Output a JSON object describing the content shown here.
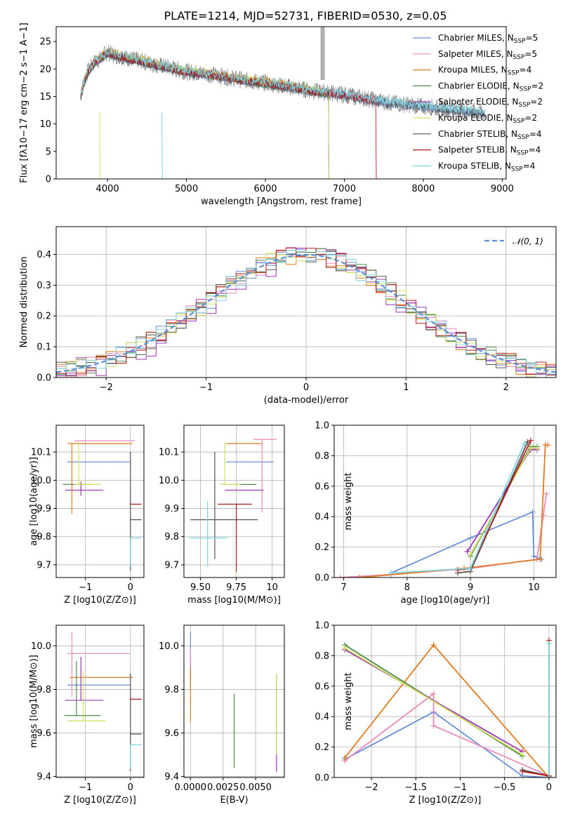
{
  "title": "PLATE=1214, MJD=52731, FIBERID=0530, z=0.05",
  "models": [
    {
      "name": "Chabrier MILES, N",
      "nssp": "5",
      "color": "#6a8fd6"
    },
    {
      "name": "Salpeter MILES, N",
      "nssp": "5",
      "color": "#e88ab8"
    },
    {
      "name": "Kroupa MILES, N",
      "nssp": "4",
      "color": "#e07c1f"
    },
    {
      "name": "Chabrier ELODIE, N",
      "nssp": "2",
      "color": "#4d8a4d"
    },
    {
      "name": "Salpeter ELODIE, N",
      "nssp": "2",
      "color": "#9b35b5"
    },
    {
      "name": "Kroupa ELODIE, N",
      "nssp": "2",
      "color": "#cfe05a"
    },
    {
      "name": "Chabrier STELIB, N",
      "nssp": "4",
      "color": "#555555"
    },
    {
      "name": "Salpeter STELIB, N",
      "nssp": "4",
      "color": "#b11a1a"
    },
    {
      "name": "Kroupa STELIB, N",
      "nssp": "4",
      "color": "#7fd3dd"
    }
  ],
  "legend_sub": "SSP",
  "gauss_label": "𝒩(0, 1)",
  "chart_data": [
    {
      "id": "spectrum",
      "type": "line",
      "title": "PLATE=1214, MJD=52731, FIBERID=0530, z=0.05",
      "xlabel": "wavelength [Angstrom, rest frame]",
      "ylabel": "Flux [fλ10−17 erg cm−2 s−1 A−1]",
      "xlim": [
        3350,
        9050
      ],
      "ylim": [
        0,
        27.7
      ],
      "xticks": [
        4000,
        5000,
        6000,
        7000,
        8000,
        9000
      ],
      "yticks": [
        0,
        5,
        10,
        15,
        20,
        25
      ],
      "x": [
        3650,
        3700,
        3750,
        3800,
        3850,
        3900,
        3950,
        4000,
        4100,
        4200,
        4300,
        4400,
        4500,
        4600,
        4700,
        4800,
        4900,
        5000,
        5200,
        5400,
        5600,
        5800,
        6000,
        6200,
        6400,
        6600,
        6800,
        7000,
        7200,
        7400,
        7600,
        7800,
        8000,
        8200,
        8400,
        8600,
        8800
      ],
      "y": [
        14.5,
        17.5,
        19.5,
        20.5,
        21.5,
        21.8,
        22.5,
        23.0,
        22.5,
        22.2,
        21.8,
        21.5,
        21.2,
        20.8,
        20.5,
        20.2,
        19.8,
        19.5,
        19.2,
        18.8,
        18.3,
        17.8,
        17.5,
        17.0,
        16.5,
        16.0,
        15.7,
        15.3,
        14.8,
        14.3,
        13.8,
        13.5,
        13.2,
        12.9,
        12.6,
        12.3,
        12.0
      ],
      "legend": "top-right"
    },
    {
      "id": "residual",
      "type": "histogram",
      "xlabel": "(data-model)/error",
      "ylabel": "Normed distribution",
      "xlim": [
        -2.5,
        2.5
      ],
      "ylim": [
        0,
        0.49
      ],
      "xticks": [
        -2,
        -1,
        0,
        1,
        2
      ],
      "yticks": [
        0.0,
        0.1,
        0.2,
        0.3,
        0.4
      ],
      "bin_width": 0.1,
      "curve": "N(0,1)",
      "legend": "top-right",
      "grid": true
    },
    {
      "id": "age_vs_Z",
      "type": "errorbar",
      "xlabel": "Z [log10(Z/Z⊙)]",
      "ylabel": "age  [log10(age/yr)]",
      "xlim": [
        -1.65,
        0.3
      ],
      "ylim": [
        9.655,
        10.195
      ],
      "xticks": [
        -1,
        0
      ],
      "yticks": [
        9.7,
        9.8,
        9.9,
        10.0,
        10.1
      ],
      "points": [
        {
          "x": -0.4,
          "xerr": [
            1.0,
            0.4
          ],
          "y": 10.065,
          "yerr": [
            0,
            0
          ]
        },
        {
          "x": -0.6,
          "xerr": [
            0.65,
            0.7
          ],
          "y": 10.14,
          "yerr": [
            0,
            0
          ]
        },
        {
          "x": -1.3,
          "xerr": [
            0.1,
            1.35
          ],
          "y": 10.13,
          "yerr": [
            0.25,
            0
          ]
        },
        {
          "x": -1.15,
          "xerr": [
            0.35,
            0.3
          ],
          "y": 9.985,
          "yerr": [
            0,
            0
          ]
        },
        {
          "x": -1.1,
          "xerr": [
            0.35,
            0.5
          ],
          "y": 9.965,
          "yerr": [
            0.02,
            0.03
          ]
        },
        {
          "x": -1.15,
          "xerr": [
            0.1,
            0.5
          ],
          "y": 9.985,
          "yerr": [
            0,
            0.15
          ]
        },
        {
          "x": 0.0,
          "xerr": [
            0,
            0.25
          ],
          "y": 9.86,
          "yerr": [
            0.18,
            0.24
          ]
        },
        {
          "x": 0.0,
          "xerr": [
            0,
            0.25
          ],
          "y": 9.915,
          "yerr": [
            0,
            0
          ]
        },
        {
          "x": 0.0,
          "xerr": [
            0,
            0.25
          ],
          "y": 9.795,
          "yerr": [
            0.1,
            0
          ]
        }
      ],
      "grid": true
    },
    {
      "id": "age_vs_mass",
      "type": "errorbar",
      "xlabel": "mass [log10(M/M⊙)]",
      "xlim": [
        9.385,
        10.085
      ],
      "ylim": [
        9.655,
        10.195
      ],
      "xticks": [
        9.5,
        9.75,
        10.0
      ],
      "yticks": [
        9.7,
        9.8,
        9.9,
        10.0,
        10.1
      ],
      "points": [
        {
          "x": 9.82,
          "xerr": [
            0.14,
            0.19
          ],
          "y": 10.065,
          "yerr": [
            0,
            0
          ]
        },
        {
          "x": 9.93,
          "xerr": [
            0.06,
            0.1
          ],
          "y": 10.145,
          "yerr": [
            0.26,
            0
          ]
        },
        {
          "x": 9.78,
          "xerr": [
            0.1,
            0.15
          ],
          "y": 10.13,
          "yerr": [
            0,
            0
          ]
        },
        {
          "x": 9.75,
          "xerr": [
            0.05,
            0.14
          ],
          "y": 9.985,
          "yerr": [
            0,
            0
          ]
        },
        {
          "x": 9.72,
          "xerr": [
            0.05,
            0.22
          ],
          "y": 9.965,
          "yerr": [
            0,
            0
          ]
        },
        {
          "x": 9.67,
          "xerr": [
            0.03,
            0.11
          ],
          "y": 9.985,
          "yerr": [
            0,
            0.15
          ]
        },
        {
          "x": 9.6,
          "xerr": [
            0.17,
            0.3
          ],
          "y": 9.86,
          "yerr": [
            0.14,
            0.24
          ]
        },
        {
          "x": 9.75,
          "xerr": [
            0.13,
            0.11
          ],
          "y": 9.915,
          "yerr": [
            0.24,
            0
          ]
        },
        {
          "x": 9.55,
          "xerr": [
            0.13,
            0.14
          ],
          "y": 9.795,
          "yerr": [
            0.1,
            0.13
          ]
        }
      ],
      "grid": true
    },
    {
      "id": "weight_vs_age",
      "type": "line",
      "xlabel": "age  [log10(age/yr)]",
      "ylabel": "mass weight",
      "xlim": [
        6.85,
        10.35
      ],
      "ylim": [
        0,
        1.0
      ],
      "xticks": [
        7,
        8,
        9,
        10
      ],
      "yticks": [
        0.0,
        0.2,
        0.4,
        0.6,
        0.8,
        1.0
      ],
      "series": [
        {
          "x": [
            7.75,
            9.0,
            9.98,
            10.0,
            10.12
          ],
          "y": [
            0.03,
            0.26,
            0.43,
            0.14,
            0.12
          ]
        },
        {
          "x": [
            6.95,
            7.75,
            9.0,
            10.05,
            10.15,
            10.2
          ],
          "y": [
            0.0,
            0.02,
            0.06,
            0.12,
            0.41,
            0.55
          ]
        },
        {
          "x": [
            7.25,
            8.9,
            10.1,
            10.18,
            10.22
          ],
          "y": [
            0.0,
            0.06,
            0.12,
            0.87,
            0.87
          ]
        },
        {
          "x": [
            9.0,
            9.95,
            10.05
          ],
          "y": [
            0.14,
            0.86,
            0.86
          ]
        },
        {
          "x": [
            8.95,
            9.95,
            10.05
          ],
          "y": [
            0.17,
            0.84,
            0.84
          ]
        },
        {
          "x": [
            9.0,
            9.95,
            10.05
          ],
          "y": [
            0.15,
            0.85,
            0.85
          ]
        },
        {
          "x": [
            8.8,
            9.0,
            9.9
          ],
          "y": [
            0.03,
            0.04,
            0.89
          ]
        },
        {
          "x": [
            8.8,
            9.0,
            9.95
          ],
          "y": [
            0.05,
            0.06,
            0.9
          ]
        },
        {
          "x": [
            7.75,
            9.0,
            9.85
          ],
          "y": [
            0.03,
            0.06,
            0.88
          ]
        }
      ],
      "grid": true
    },
    {
      "id": "mass_vs_Z",
      "type": "errorbar",
      "xlabel": "Z [log10(Z/Z⊙)]",
      "ylabel": "mass [log10(M/M⊙)]",
      "xlim": [
        -1.65,
        0.3
      ],
      "ylim": [
        9.395,
        10.095
      ],
      "xticks": [
        -1,
        0
      ],
      "yticks": [
        9.4,
        9.6,
        9.8,
        10.0
      ],
      "points": [
        {
          "x": -0.4,
          "xerr": [
            1.0,
            0.4
          ],
          "y": 9.82,
          "yerr": [
            0,
            0
          ]
        },
        {
          "x": -1.3,
          "xerr": [
            0.1,
            1.3
          ],
          "y": 9.965,
          "yerr": [
            0.2,
            0.1
          ]
        },
        {
          "x": -1.3,
          "xerr": [
            0.05,
            1.35
          ],
          "y": 9.855,
          "yerr": [
            0,
            0
          ]
        },
        {
          "x": -1.2,
          "xerr": [
            0.27,
            0.53
          ],
          "y": 9.68,
          "yerr": [
            0,
            0.25
          ]
        },
        {
          "x": -1.1,
          "xerr": [
            0.35,
            0.5
          ],
          "y": 9.75,
          "yerr": [
            0,
            0.2
          ]
        },
        {
          "x": -1.05,
          "xerr": [
            0.35,
            0.5
          ],
          "y": 9.655,
          "yerr": [
            0,
            0.23
          ]
        },
        {
          "x": 0.0,
          "xerr": [
            0,
            0.25
          ],
          "y": 9.595,
          "yerr": [
            0.17,
            0.28
          ]
        },
        {
          "x": 0.0,
          "xerr": [
            0,
            0.25
          ],
          "y": 9.755,
          "yerr": [
            0,
            0
          ]
        },
        {
          "x": 0.0,
          "xerr": [
            0,
            0.25
          ],
          "y": 9.545,
          "yerr": [
            0.11,
            0
          ]
        }
      ],
      "grid": true
    },
    {
      "id": "mass_vs_EBV",
      "type": "errorbar",
      "xlabel": "E(B-V)",
      "xlim": [
        -0.0005,
        0.0072
      ],
      "ylim": [
        9.395,
        10.095
      ],
      "xticks": [
        0.0,
        0.0025,
        0.005
      ],
      "xticklabels": [
        "0.0000",
        "0.0025",
        "0.0050"
      ],
      "yticks": [
        9.4,
        9.6,
        9.8,
        10.0
      ],
      "points": [
        {
          "x": 0.0,
          "y": 9.965,
          "yerr": [
            0.15,
            0.1
          ]
        },
        {
          "x": 0.0,
          "y": 9.935,
          "yerr": [
            0.1,
            0.05
          ]
        },
        {
          "x": 0.0,
          "y": 9.75,
          "yerr": [
            0.1,
            0.15
          ]
        },
        {
          "x": 0.00335,
          "y": 9.61,
          "yerr": [
            0.17,
            0.17
          ]
        },
        {
          "x": 0.0066,
          "y": 9.63,
          "yerr": [
            0.21,
            0.24
          ]
        },
        {
          "x": 0.0066,
          "y": 9.68,
          "yerr": [
            0.18,
            0.19
          ]
        }
      ],
      "grid": true
    },
    {
      "id": "weight_vs_Z",
      "type": "line",
      "xlabel": "Z [log10(Z/Z⊙)]",
      "ylabel": "mass weight",
      "xlim": [
        -2.42,
        0.08
      ],
      "ylim": [
        0,
        1.0
      ],
      "xticks": [
        -2.0,
        -1.5,
        -1.0,
        -0.5,
        0.0
      ],
      "yticks": [
        0.0,
        0.2,
        0.4,
        0.6,
        0.8,
        1.0
      ],
      "series": [
        {
          "x": [
            -2.3,
            -1.3,
            -0.3,
            0.0
          ],
          "y": [
            0.12,
            0.43,
            0.01,
            0.0
          ]
        },
        {
          "x": [
            -2.3,
            -1.3,
            -1.3,
            0.0
          ],
          "y": [
            0.11,
            0.55,
            0.34,
            0.01
          ]
        },
        {
          "x": [
            -2.3,
            -1.3,
            0.0
          ],
          "y": [
            0.13,
            0.87,
            0.0
          ]
        },
        {
          "x": [
            -2.3,
            -0.3
          ],
          "y": [
            0.87,
            0.14
          ]
        },
        {
          "x": [
            -2.3,
            -0.3
          ],
          "y": [
            0.84,
            0.17
          ]
        },
        {
          "x": [
            -2.3,
            -0.3
          ],
          "y": [
            0.85,
            0.15
          ]
        },
        {
          "x": [
            -0.3,
            0.0
          ],
          "y": [
            0.05,
            0.01
          ]
        },
        {
          "x": [
            -0.3,
            0.0,
            0.0
          ],
          "y": [
            0.04,
            0.01,
            0.9
          ]
        },
        {
          "x": [
            0.0,
            0.0
          ],
          "y": [
            0.0,
            0.88
          ]
        }
      ],
      "grid": true
    }
  ]
}
